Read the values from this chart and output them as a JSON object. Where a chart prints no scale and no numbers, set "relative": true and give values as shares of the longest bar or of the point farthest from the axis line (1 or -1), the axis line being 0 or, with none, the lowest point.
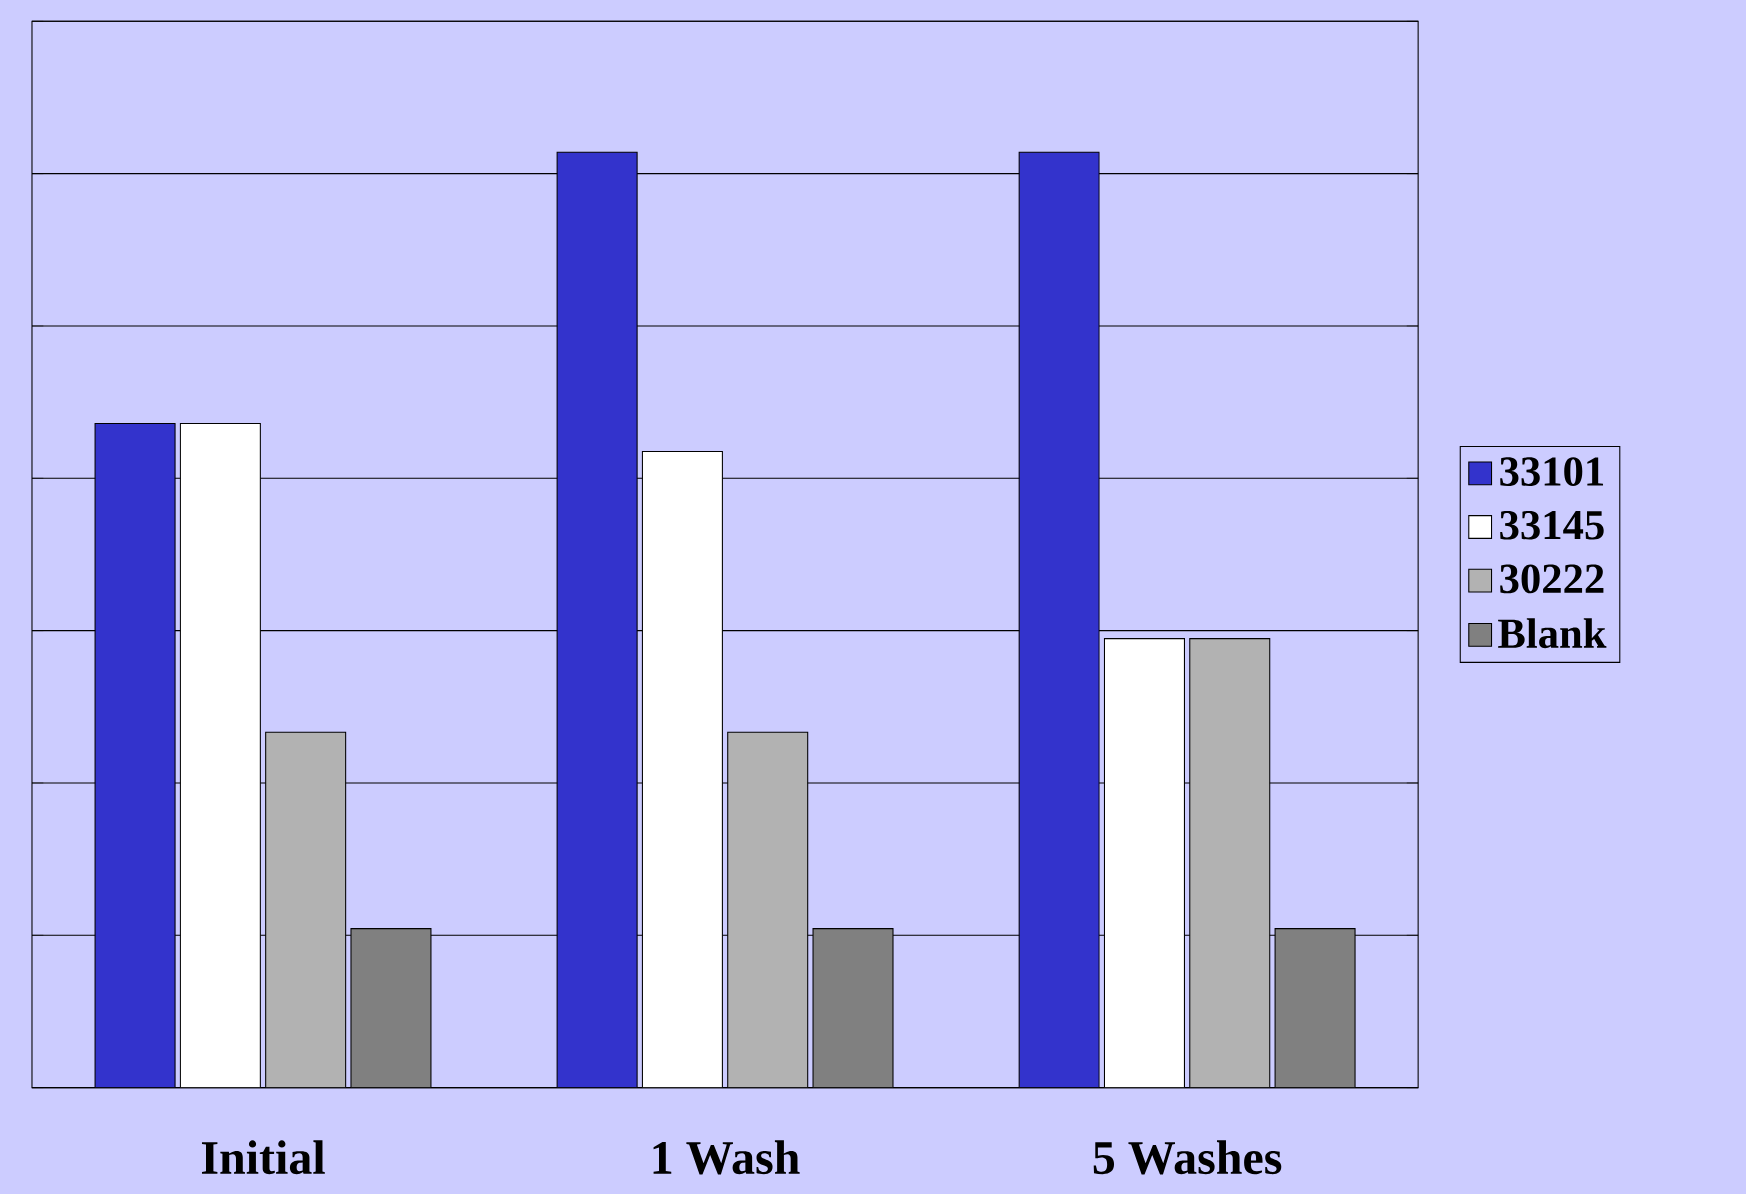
{
  "chart_data": {
    "type": "bar",
    "relative": true,
    "categories": [
      "Initial",
      "1 Wash",
      "5 Washes"
    ],
    "series": [
      {
        "name": "33101",
        "color": "#3333cc",
        "values": [
          0.71,
          1,
          1
        ]
      },
      {
        "name": "33145",
        "color": "#ffffff",
        "values": [
          0.71,
          0.68,
          0.48
        ]
      },
      {
        "name": "30222",
        "color": "#b2b2b2",
        "values": [
          0.38,
          0.38,
          0.48
        ]
      },
      {
        "name": "Blank",
        "color": "#808080",
        "values": [
          0.17,
          0.17,
          0.17
        ]
      }
    ],
    "grid": "y",
    "legend": "right"
  }
}
